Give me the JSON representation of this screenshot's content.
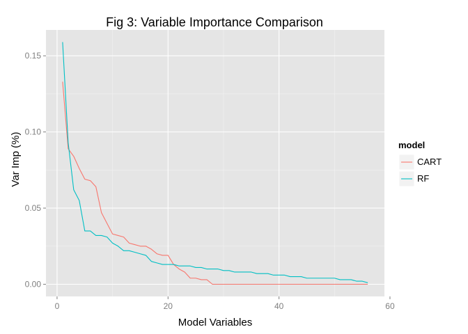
{
  "chart_data": {
    "type": "line",
    "title": "Fig 3: Variable Importance Comparison",
    "xlabel": "Model Variables",
    "ylabel": "Var Imp (%)",
    "xlim": [
      -2,
      59
    ],
    "ylim": [
      -0.008,
      0.167
    ],
    "x_ticks": [
      0,
      20,
      40,
      60
    ],
    "x_tick_labels": [
      "0",
      "20",
      "40",
      "60"
    ],
    "y_ticks": [
      0.0,
      0.05,
      0.1,
      0.15
    ],
    "y_tick_labels": [
      "0.00",
      "0.05",
      "0.10",
      "0.15"
    ],
    "grid": true,
    "legend_title": "model",
    "legend_position": "right",
    "series": [
      {
        "name": "CART",
        "color": "#F8766D",
        "x": [
          1,
          2,
          3,
          4,
          5,
          6,
          7,
          8,
          9,
          10,
          11,
          12,
          13,
          14,
          15,
          16,
          17,
          18,
          19,
          20,
          21,
          22,
          23,
          24,
          25,
          26,
          27,
          28,
          29,
          30,
          31,
          32,
          33,
          34,
          35,
          36,
          37,
          38,
          39,
          40,
          41,
          42,
          43,
          44,
          45,
          46,
          47,
          48,
          49,
          50,
          51,
          52,
          53,
          54,
          55,
          56
        ],
        "values": [
          0.133,
          0.089,
          0.084,
          0.076,
          0.069,
          0.068,
          0.064,
          0.047,
          0.04,
          0.033,
          0.032,
          0.031,
          0.027,
          0.026,
          0.025,
          0.025,
          0.023,
          0.02,
          0.019,
          0.019,
          0.013,
          0.01,
          0.008,
          0.004,
          0.004,
          0.003,
          0.003,
          0.0,
          0.0,
          0.0,
          0.0,
          0.0,
          0.0,
          0.0,
          0.0,
          0.0,
          0.0,
          0.0,
          0.0,
          0.0,
          0.0,
          0.0,
          0.0,
          0.0,
          0.0,
          0.0,
          0.0,
          0.0,
          0.0,
          0.0,
          0.0,
          0.0,
          0.0,
          0.0,
          0.0,
          0.0
        ]
      },
      {
        "name": "RF",
        "color": "#00BFC4",
        "x": [
          1,
          2,
          3,
          4,
          5,
          6,
          7,
          8,
          9,
          10,
          11,
          12,
          13,
          14,
          15,
          16,
          17,
          18,
          19,
          20,
          21,
          22,
          23,
          24,
          25,
          26,
          27,
          28,
          29,
          30,
          31,
          32,
          33,
          34,
          35,
          36,
          37,
          38,
          39,
          40,
          41,
          42,
          43,
          44,
          45,
          46,
          47,
          48,
          49,
          50,
          51,
          52,
          53,
          54,
          55,
          56
        ],
        "values": [
          0.159,
          0.093,
          0.062,
          0.055,
          0.035,
          0.035,
          0.032,
          0.032,
          0.031,
          0.027,
          0.025,
          0.022,
          0.022,
          0.021,
          0.02,
          0.019,
          0.015,
          0.014,
          0.013,
          0.013,
          0.013,
          0.012,
          0.012,
          0.012,
          0.011,
          0.011,
          0.01,
          0.01,
          0.01,
          0.009,
          0.009,
          0.008,
          0.008,
          0.008,
          0.008,
          0.007,
          0.007,
          0.007,
          0.006,
          0.006,
          0.006,
          0.005,
          0.005,
          0.005,
          0.004,
          0.004,
          0.004,
          0.004,
          0.004,
          0.004,
          0.003,
          0.003,
          0.003,
          0.002,
          0.002,
          0.001
        ]
      }
    ]
  },
  "colors": {
    "panel_background": "#E5E5E5",
    "grid_major": "#FFFFFF",
    "grid_minor": "#F2F2F2",
    "tick_text": "#7F7F7F"
  }
}
